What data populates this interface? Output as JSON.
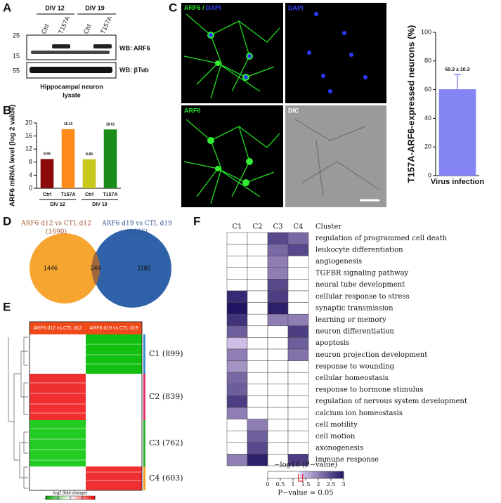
{
  "panel_labels": [
    "A",
    "B",
    "C",
    "D",
    "E",
    "F"
  ],
  "blot": {
    "groups": [
      "DIV 12",
      "DIV 19"
    ],
    "lanes": [
      "Ctrl",
      "T157A",
      "Ctrl",
      "T157A"
    ],
    "markers": [
      25,
      15,
      55
    ],
    "probes": [
      "WB: ARF6",
      "WB: βTub"
    ],
    "caption": [
      "Hippocampal neuron",
      "lysate"
    ]
  },
  "micrographs": {
    "top_left": [
      "ARF6 /",
      "DAPI"
    ],
    "panels": [
      "DAPI",
      "ARF6",
      "DIC"
    ]
  },
  "venn": {
    "sets": [
      {
        "name": "ARF6 d12 vs CTL d12",
        "total": "(1690)"
      },
      {
        "name": "ARF6 d19 vs CTL d19",
        "total": "(1426)"
      }
    ],
    "only_left": 1446,
    "both": 244,
    "only_right": 1182
  },
  "cluster_heatmap": {
    "columns": [
      "ARF6 d12 vs CTL d12",
      "ARF6 d19 vs CTL d19"
    ],
    "clusters": [
      "C1 (899)",
      "C2 (839)",
      "C3 (762)",
      "C4 (603)"
    ],
    "colorbar": {
      "title": "log2 (fold change)",
      "ticks": [
        -2,
        -1,
        0,
        1,
        2
      ]
    }
  },
  "chart_data": [
    {
      "type": "bar",
      "y_label": "ARF6 mRNA level (log 2 value)",
      "categories": [
        "Ctrl",
        "T157A",
        "Ctrl",
        "T157A"
      ],
      "groups": [
        "DIV 12",
        "DIV 19"
      ],
      "values": [
        8.95,
        18.1,
        8.89,
        18.01
      ],
      "value_labels": [
        "8.95",
        "18.10",
        "8.89",
        "18.01"
      ],
      "colors": [
        "#8b0a0a",
        "#ff8c1a",
        "#c8c81e",
        "#1a8c1a"
      ],
      "ylim": [
        0,
        20
      ],
      "yticks": [
        0,
        4,
        8,
        12,
        16,
        20
      ]
    },
    {
      "type": "bar",
      "y_label": "T157A-ARF6-expressed neurons (%)",
      "categories": [
        "Virus infection"
      ],
      "values": [
        60.3
      ],
      "errors": [
        10.3
      ],
      "value_labels": [
        "60.3 ± 10.3"
      ],
      "colors": [
        "#8484f4"
      ],
      "ylim": [
        0,
        100
      ],
      "yticks": [
        0,
        20,
        40,
        60,
        80,
        100
      ]
    },
    {
      "type": "heatmap",
      "x_title": "Cluster",
      "x": [
        "C1",
        "C2",
        "C3",
        "C4"
      ],
      "y": [
        "regulation of programmed cell death",
        "leukocyte differentiation",
        "angiogenesis",
        "TGFBR signaling pathway",
        "neural tube development",
        "cellular response to stress",
        "synaptic transmission",
        "learning or memory",
        "neuron differentiation",
        "apoptosis",
        "neuron projection development",
        "response to wounding",
        "cellular homeostasis",
        "response to hormone stimulus",
        "regulation of nervous system development",
        "calcium ion homeostasis",
        "cell motility",
        "cell motion",
        "axonogenesis",
        "immune response"
      ],
      "values": [
        [
          0,
          0,
          2.5,
          2.2
        ],
        [
          0,
          0,
          2.2,
          2.5
        ],
        [
          0,
          0,
          2.0,
          0
        ],
        [
          0,
          0,
          2.0,
          0
        ],
        [
          0,
          0,
          2.5,
          0
        ],
        [
          2.8,
          0,
          2.6,
          0
        ],
        [
          3.0,
          0,
          2.9,
          0
        ],
        [
          2.7,
          0,
          2.0,
          2.0
        ],
        [
          2.3,
          0,
          0,
          2.6
        ],
        [
          1.4,
          0,
          0,
          2.3
        ],
        [
          2.0,
          0,
          0,
          2.1
        ],
        [
          1.8,
          0,
          0,
          0
        ],
        [
          2.2,
          0,
          0,
          0
        ],
        [
          2.3,
          0,
          0,
          0
        ],
        [
          2.6,
          0,
          0,
          0
        ],
        [
          2.0,
          0,
          0,
          0
        ],
        [
          0,
          2.0,
          0,
          0
        ],
        [
          0,
          2.3,
          0,
          0
        ],
        [
          0,
          2.5,
          0,
          0
        ],
        [
          2.0,
          2.9,
          0,
          2.6
        ]
      ],
      "colorbar": {
        "title": "−log10 (P−value)",
        "lim": [
          0,
          3
        ],
        "ticks": [
          0,
          0.5,
          1,
          1.5,
          2,
          2.5,
          3
        ],
        "threshold": 1.3,
        "note": "P−value = 0.05"
      }
    }
  ]
}
